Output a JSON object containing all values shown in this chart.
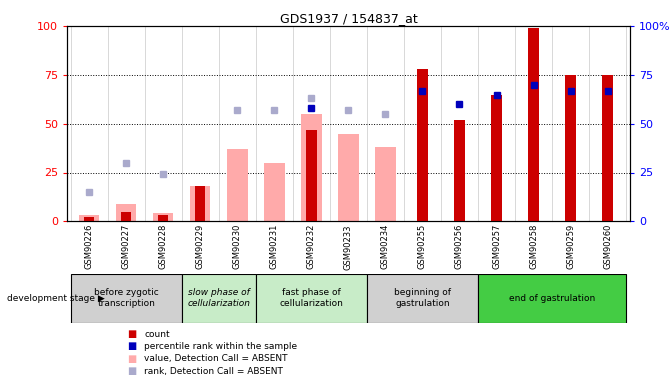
{
  "title": "GDS1937 / 154837_at",
  "samples": [
    "GSM90226",
    "GSM90227",
    "GSM90228",
    "GSM90229",
    "GSM90230",
    "GSM90231",
    "GSM90232",
    "GSM90233",
    "GSM90234",
    "GSM90255",
    "GSM90256",
    "GSM90257",
    "GSM90258",
    "GSM90259",
    "GSM90260"
  ],
  "count_values": [
    2,
    5,
    3,
    18,
    null,
    null,
    47,
    null,
    null,
    78,
    52,
    65,
    99,
    75,
    75
  ],
  "percentile_values": [
    null,
    null,
    null,
    null,
    null,
    null,
    58,
    null,
    null,
    67,
    60,
    65,
    70,
    67,
    67
  ],
  "absent_value_bars": [
    3,
    9,
    4,
    18,
    37,
    30,
    55,
    45,
    38,
    null,
    null,
    null,
    null,
    null,
    null
  ],
  "absent_rank_dots": [
    15,
    30,
    24,
    null,
    57,
    57,
    63,
    57,
    55,
    null,
    null,
    null,
    null,
    null,
    null
  ],
  "stage_groups": [
    {
      "label": "before zygotic\ntranscription",
      "samples_idx": [
        0,
        1,
        2
      ],
      "color": "#d0d0d0",
      "font_italic": false
    },
    {
      "label": "slow phase of\ncellularization",
      "samples_idx": [
        3,
        4
      ],
      "color": "#c8ecc8",
      "font_italic": true
    },
    {
      "label": "fast phase of\ncellularization",
      "samples_idx": [
        5,
        6,
        7
      ],
      "color": "#c8ecc8",
      "font_italic": false
    },
    {
      "label": "beginning of\ngastrulation",
      "samples_idx": [
        8,
        9,
        10
      ],
      "color": "#d0d0d0",
      "font_italic": false
    },
    {
      "label": "end of gastrulation",
      "samples_idx": [
        11,
        12,
        13,
        14
      ],
      "color": "#44cc44",
      "font_italic": false
    }
  ],
  "color_red_bar": "#cc0000",
  "color_blue_dot": "#0000bb",
  "color_pink_bar": "#ffaaaa",
  "color_lavender_dot": "#aaaacc",
  "legend_items": [
    {
      "color": "#cc0000",
      "label": "count"
    },
    {
      "color": "#0000bb",
      "label": "percentile rank within the sample"
    },
    {
      "color": "#ffaaaa",
      "label": "value, Detection Call = ABSENT"
    },
    {
      "color": "#aaaacc",
      "label": "rank, Detection Call = ABSENT"
    }
  ],
  "dev_stage_label": "development stage",
  "ylim": [
    0,
    100
  ],
  "yticks": [
    0,
    25,
    50,
    75,
    100
  ]
}
